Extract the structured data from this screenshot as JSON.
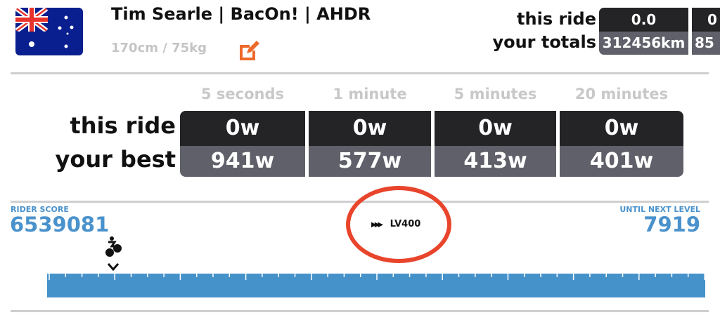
{
  "profile": {
    "name": "Tim Searle | BacOn! | AHDR",
    "height_weight": "170cm / 75kg",
    "flag_icon": "australia-flag-icon",
    "edit_icon": "edit-icon"
  },
  "totals": {
    "this_ride_label": "this ride",
    "your_totals_label": "your totals",
    "columns": [
      {
        "this_ride": "0.0",
        "total": "312456km"
      },
      {
        "this_ride": "0",
        "total": "85"
      }
    ]
  },
  "power": {
    "this_ride_label": "this ride",
    "your_best_label": "your best",
    "columns": [
      {
        "header": "5 seconds",
        "this_ride": "0w",
        "best": "941w"
      },
      {
        "header": "1 minute",
        "this_ride": "0w",
        "best": "577w"
      },
      {
        "header": "5 minutes",
        "this_ride": "0w",
        "best": "413w"
      },
      {
        "header": "20 minutes",
        "this_ride": "0w",
        "best": "401w"
      }
    ]
  },
  "score": {
    "rider_score_label": "RIDER SCORE",
    "rider_score": "6539081",
    "level": "LV400",
    "until_next_label": "UNTIL NEXT LEVEL",
    "until_next": "7919"
  },
  "colors": {
    "accent_blue": "#4592cb",
    "circle_red": "#e8452c",
    "edit_orange": "#ee6a2c",
    "dark_cell": "#242427",
    "gray_cell": "#5f6069"
  }
}
